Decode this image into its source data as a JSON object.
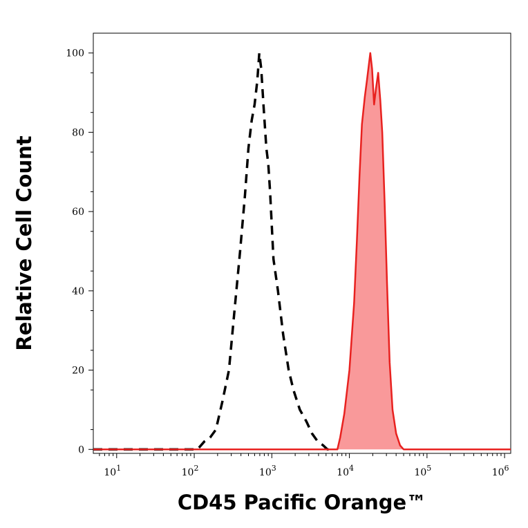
{
  "chart_data": {
    "type": "area",
    "title": "",
    "xlabel": "CD45 Pacific Orange™",
    "ylabel": "Relative Cell Count",
    "x_scale": "log",
    "xlim": [
      5,
      1200000
    ],
    "ylim": [
      -1,
      105
    ],
    "x_ticks": [
      {
        "value": 10,
        "base": "10",
        "exp": "1"
      },
      {
        "value": 100,
        "base": "10",
        "exp": "2"
      },
      {
        "value": 1000,
        "base": "10",
        "exp": "3"
      },
      {
        "value": 10000,
        "base": "10",
        "exp": "4"
      },
      {
        "value": 100000,
        "base": "10",
        "exp": "5"
      },
      {
        "value": 1000000,
        "base": "10",
        "exp": "6"
      }
    ],
    "y_ticks": [
      0,
      20,
      40,
      60,
      80,
      100
    ],
    "grid": false,
    "legend": "none",
    "series": [
      {
        "style": "dashed",
        "color": "#000000",
        "fill": "none",
        "points": [
          [
            5,
            0
          ],
          [
            110,
            0
          ],
          [
            135,
            2
          ],
          [
            160,
            3
          ],
          [
            190,
            5
          ],
          [
            230,
            12
          ],
          [
            280,
            20
          ],
          [
            330,
            35
          ],
          [
            390,
            50
          ],
          [
            450,
            64
          ],
          [
            500,
            76
          ],
          [
            550,
            83
          ],
          [
            600,
            87
          ],
          [
            650,
            93
          ],
          [
            690,
            100
          ],
          [
            730,
            96
          ],
          [
            780,
            87
          ],
          [
            850,
            76
          ],
          [
            900,
            72
          ],
          [
            950,
            65
          ],
          [
            1050,
            48
          ],
          [
            1200,
            40
          ],
          [
            1400,
            29
          ],
          [
            1650,
            20
          ],
          [
            1900,
            15
          ],
          [
            2300,
            10
          ],
          [
            2800,
            7
          ],
          [
            3300,
            4
          ],
          [
            3900,
            2
          ],
          [
            4600,
            1
          ],
          [
            5200,
            0
          ],
          [
            6000,
            0
          ]
        ]
      },
      {
        "style": "solid",
        "color": "#e8211f",
        "fill": "#f9999a",
        "points": [
          [
            5,
            0
          ],
          [
            7000,
            0
          ],
          [
            7600,
            3
          ],
          [
            8600,
            9
          ],
          [
            10000,
            20
          ],
          [
            11500,
            37
          ],
          [
            12500,
            53
          ],
          [
            13500,
            69
          ],
          [
            14500,
            82
          ],
          [
            15800,
            89
          ],
          [
            16800,
            93
          ],
          [
            17800,
            97
          ],
          [
            18600,
            100
          ],
          [
            19600,
            96
          ],
          [
            20800,
            87
          ],
          [
            22000,
            91
          ],
          [
            23500,
            95
          ],
          [
            25000,
            88
          ],
          [
            26500,
            80
          ],
          [
            28500,
            62
          ],
          [
            30500,
            42
          ],
          [
            33000,
            22
          ],
          [
            36000,
            10
          ],
          [
            40000,
            4
          ],
          [
            45000,
            1
          ],
          [
            50000,
            0
          ],
          [
            1200000,
            0
          ]
        ]
      }
    ]
  }
}
